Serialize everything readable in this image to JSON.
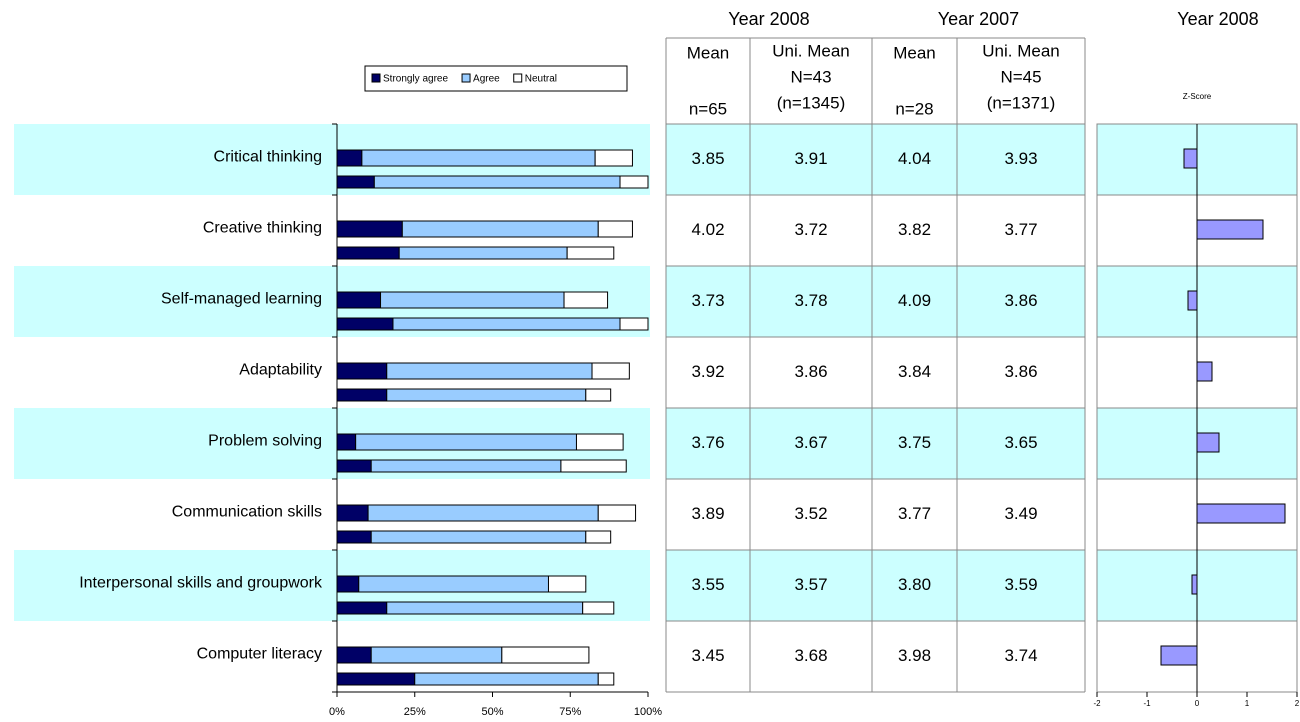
{
  "chart_data": [
    {
      "type": "stacked-bar-horizontal",
      "categories": [
        "Critical thinking",
        "Creative thinking",
        "Self-managed learning",
        "Adaptability",
        "Problem solving",
        "Communication skills",
        "Interpersonal skills and groupwork",
        "Computer literacy"
      ],
      "series": [
        {
          "name": "Strongly agree",
          "color": "#000066",
          "values": [
            [
              8,
              12
            ],
            [
              21,
              20
            ],
            [
              14,
              18
            ],
            [
              16,
              16
            ],
            [
              6,
              11
            ],
            [
              10,
              11
            ],
            [
              7,
              16
            ],
            [
              11,
              25
            ]
          ]
        },
        {
          "name": "Agree",
          "color": "#99ccff",
          "values": [
            [
              75,
              79
            ],
            [
              63,
              54
            ],
            [
              59,
              73
            ],
            [
              66,
              64
            ],
            [
              71,
              61
            ],
            [
              74,
              69
            ],
            [
              61,
              63
            ],
            [
              42,
              59
            ]
          ]
        },
        {
          "name": "Neutral",
          "color": "#ffffff",
          "values": [
            [
              12,
              9
            ],
            [
              11,
              15
            ],
            [
              14,
              9
            ],
            [
              12,
              8
            ],
            [
              15,
              21
            ],
            [
              12,
              8
            ],
            [
              12,
              10
            ],
            [
              28,
              5
            ]
          ]
        }
      ],
      "xlim": [
        0,
        100
      ],
      "xticks": [
        {
          "value": 0,
          "label": "0%"
        },
        {
          "value": 25,
          "label": "25%"
        },
        {
          "value": 50,
          "label": "50%"
        },
        {
          "value": 75,
          "label": "75%"
        },
        {
          "value": 100,
          "label": "100%"
        }
      ]
    },
    {
      "type": "bar-horizontal",
      "heading": "Year 2008",
      "title": "Z-Score",
      "values": [
        -0.26,
        1.32,
        -0.18,
        0.3,
        0.44,
        1.76,
        -0.1,
        -0.72
      ],
      "color": "#9999ff",
      "xlim": [
        -2,
        2
      ],
      "xticks": [
        -2,
        -1,
        0,
        1,
        2
      ]
    }
  ],
  "table": {
    "groups": [
      "Year 2008",
      "Year 2007"
    ],
    "columns": [
      [
        "Mean",
        "n=65"
      ],
      [
        "Uni. Mean",
        "N=43",
        "(n=1345)"
      ],
      [
        "Mean",
        "n=28"
      ],
      [
        "Uni. Mean",
        "N=45",
        "(n=1371)"
      ]
    ],
    "rows": [
      [
        "3.85",
        "3.91",
        "4.04",
        "3.93"
      ],
      [
        "4.02",
        "3.72",
        "3.82",
        "3.77"
      ],
      [
        "3.73",
        "3.78",
        "4.09",
        "3.86"
      ],
      [
        "3.92",
        "3.86",
        "3.84",
        "3.86"
      ],
      [
        "3.76",
        "3.67",
        "3.75",
        "3.65"
      ],
      [
        "3.89",
        "3.52",
        "3.77",
        "3.49"
      ],
      [
        "3.55",
        "3.57",
        "3.80",
        "3.59"
      ],
      [
        "3.45",
        "3.68",
        "3.98",
        "3.74"
      ]
    ]
  }
}
